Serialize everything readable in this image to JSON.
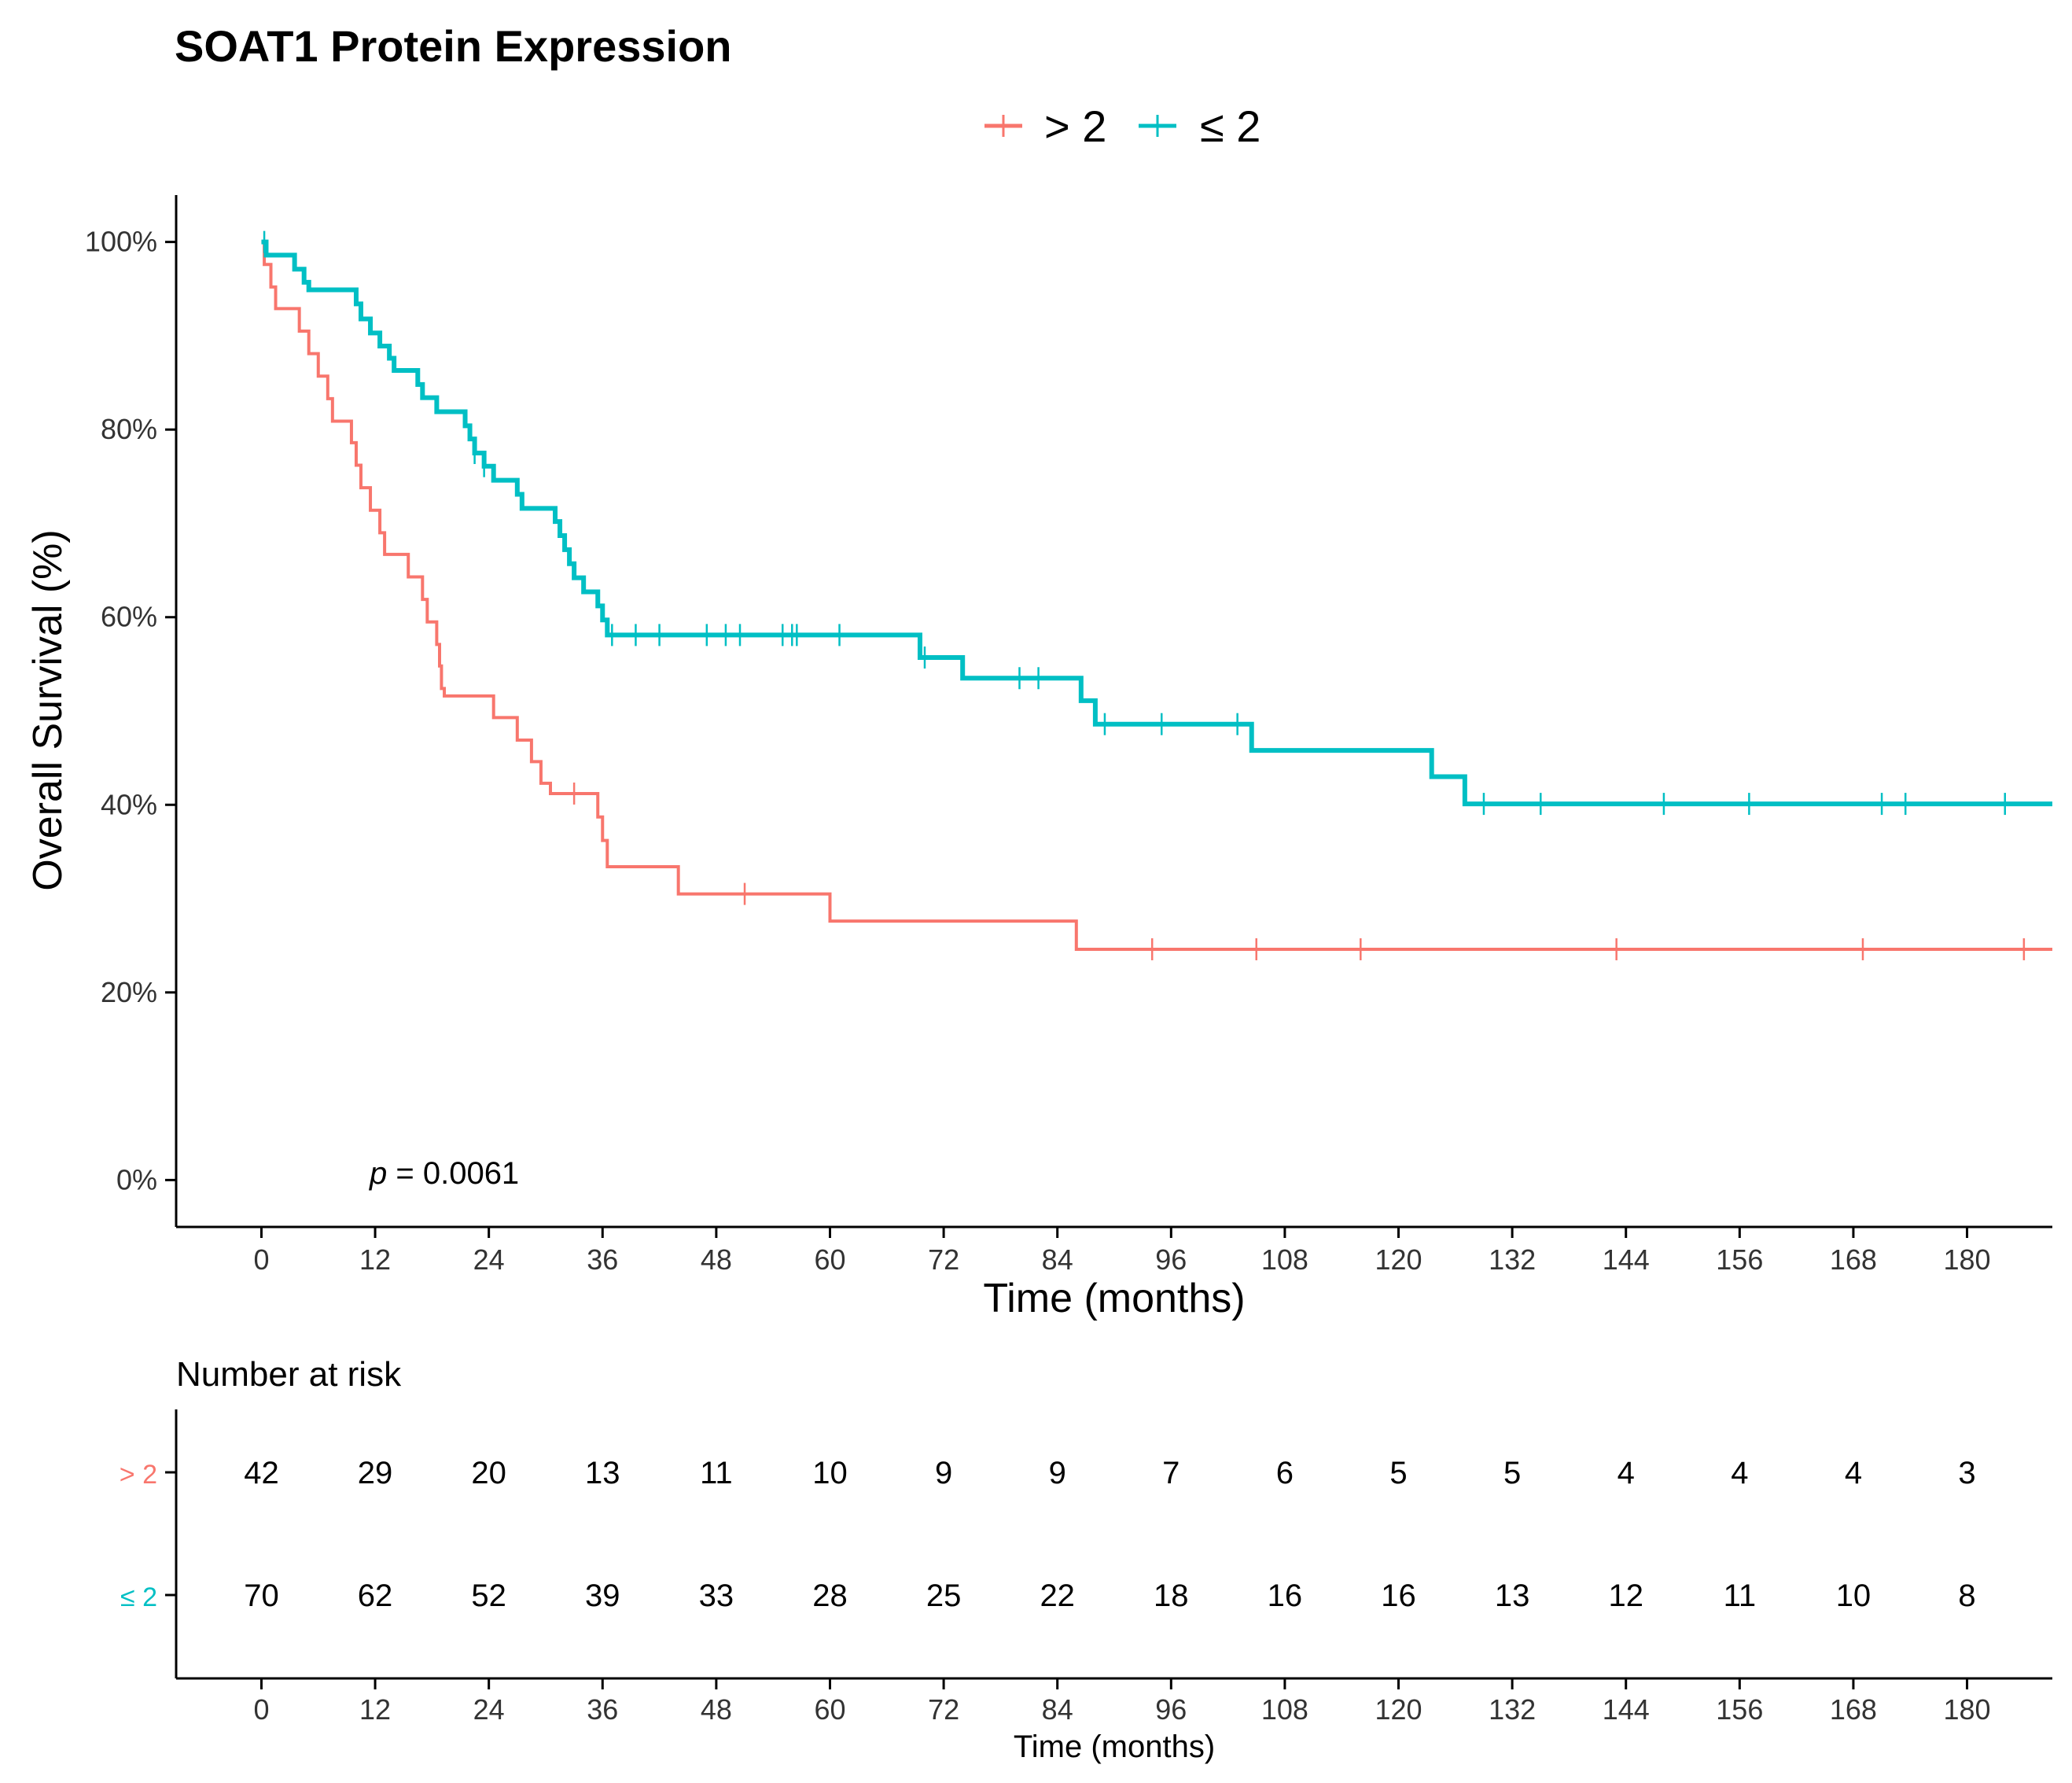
{
  "title": "SOAT1 Protein Expression",
  "colors": {
    "high": "#F8766D",
    "low": "#00BFC4",
    "axis": "#000000"
  },
  "legend": [
    {
      "label": "> 2",
      "color": "#F8766D"
    },
    {
      "label": "≤ 2",
      "color": "#00BFC4"
    }
  ],
  "p_value": {
    "symbol": "p",
    "text": " = 0.0061"
  },
  "risk_table": {
    "title": "Number at risk",
    "xlabel": "Time (months)",
    "rows": [
      {
        "label": "> 2",
        "color": "#F8766D",
        "values": [
          42,
          29,
          20,
          13,
          11,
          10,
          9,
          9,
          7,
          6,
          5,
          5,
          4,
          4,
          4,
          3
        ]
      },
      {
        "label": "≤ 2",
        "color": "#00BFC4",
        "values": [
          70,
          62,
          52,
          39,
          33,
          28,
          25,
          22,
          18,
          16,
          16,
          13,
          12,
          11,
          10,
          8
        ]
      }
    ]
  },
  "chart_data": {
    "type": "line",
    "title": "SOAT1 Protein Expression",
    "xlabel": "Time (months)",
    "ylabel": "Overall Survival (%)",
    "xlim": [
      -9,
      189
    ],
    "ylim": [
      -5,
      105
    ],
    "x_ticks": [
      0,
      12,
      24,
      36,
      48,
      60,
      72,
      84,
      96,
      108,
      120,
      132,
      144,
      156,
      168,
      180
    ],
    "y_ticks": [
      0,
      20,
      40,
      60,
      80,
      100
    ],
    "y_tick_labels": [
      "0%",
      "20%",
      "40%",
      "60%",
      "80%",
      "100%"
    ],
    "grid": false,
    "legend_position": "top",
    "series": [
      {
        "name": "> 2",
        "color": "#F8766D",
        "steps": [
          [
            0,
            100
          ],
          [
            0.3,
            97.6
          ],
          [
            1,
            95.2
          ],
          [
            1.5,
            92.9
          ],
          [
            4,
            90.5
          ],
          [
            5,
            88.1
          ],
          [
            6,
            85.7
          ],
          [
            7,
            83.3
          ],
          [
            7.5,
            80.9
          ],
          [
            9.5,
            78.6
          ],
          [
            10,
            76.2
          ],
          [
            10.5,
            73.8
          ],
          [
            11.5,
            71.4
          ],
          [
            12.5,
            69.0
          ],
          [
            13,
            66.7
          ],
          [
            15.5,
            64.3
          ],
          [
            17,
            61.9
          ],
          [
            17.5,
            59.5
          ],
          [
            18.5,
            57.1
          ],
          [
            18.8,
            54.8
          ],
          [
            19,
            52.4
          ],
          [
            19.3,
            51.6
          ],
          [
            24.5,
            49.3
          ],
          [
            27,
            46.9
          ],
          [
            28.5,
            44.6
          ],
          [
            29.5,
            42.3
          ],
          [
            30.5,
            41.2
          ],
          [
            35.5,
            38.7
          ],
          [
            36,
            36.2
          ],
          [
            36.5,
            33.4
          ],
          [
            44,
            30.5
          ],
          [
            60,
            27.6
          ],
          [
            86,
            24.6
          ],
          [
            189,
            24.6
          ]
        ],
        "censor_times": [
          33,
          51,
          94,
          105,
          116,
          143,
          169,
          186
        ]
      },
      {
        "name": "≤ 2",
        "color": "#00BFC4",
        "steps": [
          [
            0,
            100
          ],
          [
            0.5,
            98.6
          ],
          [
            3.5,
            97.1
          ],
          [
            4.5,
            95.7
          ],
          [
            5,
            94.9
          ],
          [
            10,
            93.4
          ],
          [
            10.5,
            91.8
          ],
          [
            11.5,
            90.3
          ],
          [
            12.5,
            88.9
          ],
          [
            13.5,
            87.6
          ],
          [
            14,
            86.3
          ],
          [
            16.5,
            84.8
          ],
          [
            17,
            83.4
          ],
          [
            18.5,
            81.9
          ],
          [
            21.5,
            80.4
          ],
          [
            22,
            79.0
          ],
          [
            22.5,
            77.5
          ],
          [
            23.5,
            76.1
          ],
          [
            24.5,
            74.6
          ],
          [
            27,
            73.1
          ],
          [
            27.5,
            71.6
          ],
          [
            31,
            70.2
          ],
          [
            31.5,
            68.7
          ],
          [
            32,
            67.2
          ],
          [
            32.5,
            65.7
          ],
          [
            33,
            64.2
          ],
          [
            34,
            62.7
          ],
          [
            35.5,
            61.2
          ],
          [
            36,
            59.7
          ],
          [
            36.5,
            58.1
          ],
          [
            69.5,
            55.7
          ],
          [
            74,
            53.5
          ],
          [
            86.5,
            51.1
          ],
          [
            88,
            48.6
          ],
          [
            104.5,
            45.8
          ],
          [
            123.5,
            43.0
          ],
          [
            127,
            40.1
          ],
          [
            189,
            40.1
          ]
        ],
        "censor_times": [
          0.3,
          22.5,
          23.5,
          37,
          39.5,
          42,
          47,
          49,
          50.5,
          55,
          56,
          56.5,
          61,
          70,
          80,
          82,
          89,
          95,
          103,
          129,
          135,
          148,
          157,
          171,
          173.5,
          184
        ]
      }
    ]
  }
}
